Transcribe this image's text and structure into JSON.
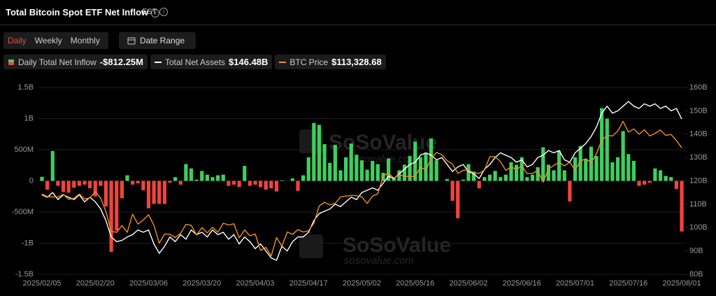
{
  "header": {
    "title": "Total Bitcoin Spot ETF Net Inflow",
    "timezone": "EST",
    "tabs": [
      "Daily",
      "Weekly",
      "Monthly"
    ],
    "active_tab": 0,
    "date_range": "Date Range"
  },
  "watermark": {
    "brand": "SoSoValue",
    "site": "sosovalue.com"
  },
  "chart_data": {
    "type": "bar",
    "categories": [
      "2025/02/05",
      null,
      null,
      null,
      null,
      null,
      null,
      null,
      null,
      null,
      "2025/02/20",
      null,
      null,
      null,
      null,
      null,
      null,
      null,
      null,
      null,
      "2025/03/06",
      null,
      null,
      null,
      null,
      null,
      null,
      null,
      null,
      null,
      "2025/03/20",
      null,
      null,
      null,
      null,
      null,
      null,
      null,
      null,
      null,
      "2025/04/03",
      null,
      null,
      null,
      null,
      null,
      null,
      null,
      null,
      null,
      "2025/04/17",
      null,
      null,
      null,
      null,
      null,
      null,
      null,
      null,
      null,
      "2025/05/02",
      null,
      null,
      null,
      null,
      null,
      null,
      null,
      null,
      null,
      "2025/05/16",
      null,
      null,
      null,
      null,
      null,
      null,
      null,
      null,
      null,
      "2025/06/02",
      null,
      null,
      null,
      null,
      null,
      null,
      null,
      null,
      null,
      "2025/06/16",
      null,
      null,
      null,
      null,
      null,
      null,
      null,
      null,
      null,
      "2025/07/01",
      null,
      null,
      null,
      null,
      null,
      null,
      null,
      null,
      null,
      "2025/07/16",
      null,
      null,
      null,
      null,
      null,
      null,
      null,
      null,
      null,
      "2025/08/01"
    ],
    "ylim": [
      -1500,
      1500
    ],
    "yticks": [
      {
        "value": 1500,
        "label": "1.5B"
      },
      {
        "value": 1000,
        "label": "1B"
      },
      {
        "value": 500,
        "label": "500M"
      },
      0,
      {
        "value": -500,
        "label": "-500M"
      },
      {
        "value": -1000,
        "label": "-1B"
      },
      {
        "value": -1500,
        "label": "-1.5B"
      }
    ],
    "y2lim": [
      80,
      160
    ],
    "y2ticks": [
      {
        "value": 160,
        "label": "160B"
      },
      {
        "value": 150,
        "label": "150B"
      },
      {
        "value": 140,
        "label": "140B"
      },
      {
        "value": 130,
        "label": "130B"
      },
      {
        "value": 120,
        "label": "120B"
      },
      {
        "value": 110,
        "label": "110B"
      },
      {
        "value": 100,
        "label": "100B"
      },
      {
        "value": 90,
        "label": "90B"
      },
      {
        "value": 80,
        "label": "80B"
      }
    ],
    "y3lim": [
      70000,
      134000
    ],
    "grid": true,
    "series": [
      {
        "name": "Daily Total Net Inflow",
        "type": "bar",
        "color": "#3ecf5e",
        "negative_color": "#f0443c",
        "value_label": "-$812.25M",
        "values": [
          66,
          -140,
          480,
          -80,
          -180,
          -190,
          -110,
          -80,
          -60,
          -120,
          -250,
          -80,
          -410,
          -1140,
          -800,
          -280,
          90,
          -60,
          -40,
          -150,
          -440,
          -370,
          -370,
          -370,
          -30,
          60,
          -60,
          270,
          200,
          20,
          160,
          100,
          60,
          90,
          100,
          -80,
          -60,
          -100,
          240,
          -80,
          -60,
          -100,
          -140,
          -120,
          -170,
          10,
          0,
          40,
          -160,
          90,
          380,
          930,
          900,
          590,
          290,
          580,
          170,
          380,
          600,
          420,
          330,
          180,
          320,
          270,
          130,
          360,
          60,
          170,
          260,
          400,
          630,
          380,
          450,
          680,
          330,
          0,
          30,
          -320,
          -600,
          20,
          270,
          150,
          -120,
          60,
          100,
          160,
          60,
          100,
          300,
          260,
          380,
          60,
          100,
          220,
          540,
          260,
          170,
          480,
          170,
          -330,
          380,
          560,
          350,
          550,
          400,
          1170,
          1000,
          300,
          380,
          800,
          430,
          320,
          -80,
          -60,
          -30,
          200,
          170,
          80,
          60,
          -130,
          -812.25
        ]
      },
      {
        "name": "Total Net Assets",
        "type": "line",
        "axis": "y2",
        "color": "#ffffff",
        "value_label": "$146.48B",
        "values": [
          114,
          113,
          115,
          112,
          114,
          113,
          112,
          114,
          111,
          113,
          111,
          108,
          103,
          96,
          94,
          94.5,
          96,
          97,
          99,
          98,
          99,
          93,
          89,
          92,
          96,
          94,
          97,
          95,
          99,
          97,
          98,
          96,
          99,
          97,
          98,
          95,
          97,
          93,
          96,
          94,
          91,
          93,
          90,
          87,
          86,
          92,
          90,
          94,
          96,
          96,
          98,
          103,
          106,
          107,
          108,
          110,
          109,
          111,
          113,
          112,
          115,
          116,
          117,
          116,
          119,
          122,
          121,
          123,
          125,
          127,
          128,
          131,
          132,
          131,
          129,
          130,
          127,
          124,
          126,
          127,
          124,
          123,
          121,
          125,
          127,
          130,
          132,
          131,
          130,
          128,
          129,
          126,
          127,
          130,
          131,
          133,
          132,
          133,
          129,
          128,
          132,
          134,
          136,
          139,
          143,
          149,
          152,
          149,
          150,
          152,
          154,
          152,
          151,
          153,
          152,
          153,
          151,
          152,
          150,
          151,
          146.48
        ]
      },
      {
        "name": "BTC Price",
        "type": "line",
        "axis": "y3",
        "color": "#f0901e",
        "value_label": "$113,328.68",
        "values": [
          97500,
          96600,
          96500,
          96500,
          97400,
          95700,
          96000,
          97500,
          95800,
          96200,
          98300,
          96100,
          91500,
          84700,
          84400,
          86700,
          84400,
          90600,
          87200,
          88600,
          90400,
          86800,
          80700,
          83800,
          83700,
          82600,
          84100,
          87100,
          86800,
          83500,
          86000,
          84200,
          86100,
          84400,
          87500,
          86900,
          87300,
          82500,
          85200,
          83200,
          83800,
          78200,
          79200,
          76300,
          82600,
          79600,
          84500,
          83700,
          85300,
          84500,
          84900,
          87500,
          93400,
          94700,
          93800,
          94300,
          96500,
          96800,
          97000,
          97000,
          96500,
          94300,
          96800,
          97600,
          103700,
          104700,
          102900,
          104100,
          103600,
          103500,
          103500,
          106800,
          105600,
          109700,
          111700,
          111000,
          108900,
          107800,
          104600,
          105600,
          105800,
          104700,
          104600,
          105700,
          110300,
          110300,
          108600,
          105600,
          106800,
          105900,
          107100,
          104500,
          104600,
          105500,
          101600,
          106100,
          107300,
          108400,
          107100,
          108400,
          105700,
          108800,
          109600,
          108200,
          111300,
          115900,
          117600,
          117400,
          119100,
          122400,
          118700,
          119800,
          118000,
          119500,
          117400,
          118300,
          119400,
          117600,
          117900,
          115800,
          113328.68
        ]
      }
    ]
  }
}
